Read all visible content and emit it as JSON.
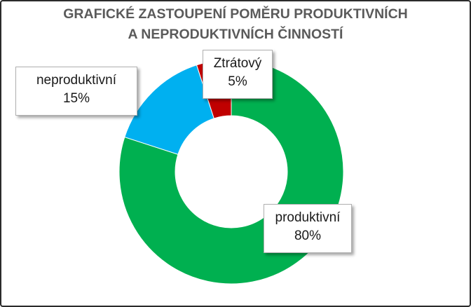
{
  "chart_data": {
    "type": "pie",
    "donut": true,
    "title": [
      "GRAFICKÉ ZASTOUPENÍ POMĚRU PRODUKTIVNÍCH",
      "A NEPRODUKTIVNÍCH ČINNOSTÍ"
    ],
    "categories": [
      "produktivní",
      "neproduktivní",
      "Ztrátový"
    ],
    "values": [
      80,
      15,
      5
    ],
    "data_labels": [
      "80%",
      "15%",
      "5%"
    ],
    "colors": [
      "#00b050",
      "#00b0f0",
      "#c00000"
    ],
    "legend": "none"
  }
}
